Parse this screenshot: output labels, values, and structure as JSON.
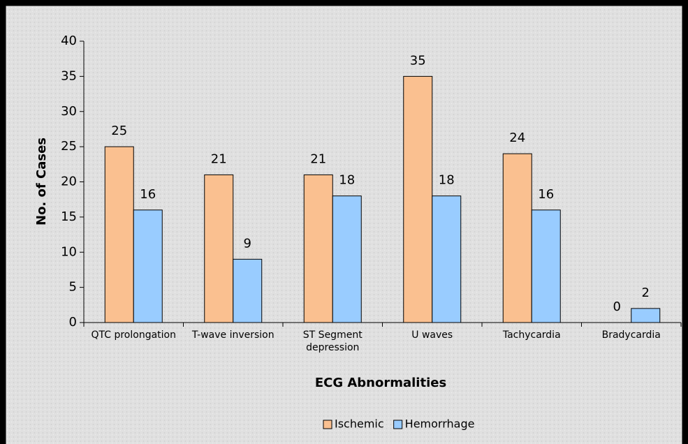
{
  "chart_data": {
    "type": "bar",
    "xlabel": "ECG Abnormalities",
    "ylabel": "No. of Cases",
    "categories": [
      "QTC prolongation",
      "T-wave inversion",
      "ST Segment depression",
      "U waves",
      "Tachycardia",
      "Bradycardia"
    ],
    "series": [
      {
        "name": "Ischemic",
        "color": "#fac090",
        "values": [
          25,
          21,
          21,
          35,
          24,
          0
        ]
      },
      {
        "name": "Hemorrhage",
        "color": "#99ccff",
        "values": [
          16,
          9,
          18,
          18,
          16,
          2
        ]
      }
    ],
    "ylim": [
      0,
      40
    ],
    "yticks": [
      0,
      5,
      10,
      15,
      20,
      25,
      30,
      35,
      40
    ],
    "legend": "bottom"
  }
}
